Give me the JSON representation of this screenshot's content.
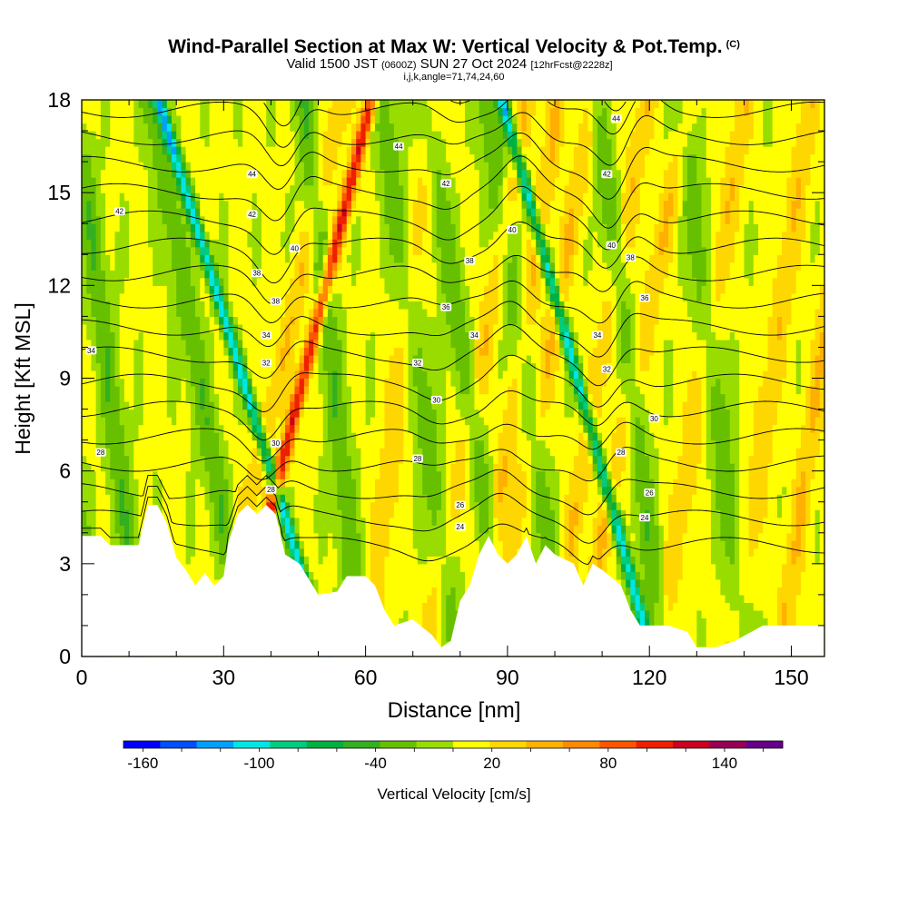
{
  "chart_data": {
    "type": "heatmap",
    "title": "Wind-Parallel Section at Max W: Vertical Velocity & Pot.Temp.",
    "title_mark": "(C)",
    "subtitle_main_a": "Valid 1500 JST ",
    "subtitle_small_a": "(0600Z)",
    "subtitle_main_b": " SUN 27 Oct 2024 ",
    "subtitle_small_b": "[12hrFcst@2228z]",
    "subtitle_line2": "i,j,k,angle=71,74,24,60",
    "xlabel": "Distance [nm]",
    "ylabel": "Height [Kft MSL]",
    "xlim": [
      0,
      157
    ],
    "ylim": [
      0,
      18
    ],
    "x_ticks": [
      "0",
      "30",
      "60",
      "90",
      "120",
      "150"
    ],
    "y_ticks": [
      "0",
      "3",
      "6",
      "9",
      "12",
      "15",
      "18"
    ],
    "colorbar": {
      "label": "Vertical Velocity [cm/s]",
      "range": [
        -170,
        170
      ],
      "step": 20,
      "tick_labels": [
        "-160",
        "-100",
        "-40",
        "20",
        "80",
        "140"
      ],
      "colors": [
        "#0000ff",
        "#0050ff",
        "#00a0ff",
        "#00e6e6",
        "#00cc80",
        "#00b040",
        "#33b020",
        "#66c000",
        "#99dd00",
        "#ffff00",
        "#ffd700",
        "#ffb000",
        "#ff8800",
        "#ff5500",
        "#ee2000",
        "#cc0020",
        "#990055",
        "#660088"
      ]
    },
    "terrain_kft": [
      [
        0,
        3.9
      ],
      [
        4,
        3.9
      ],
      [
        6,
        3.6
      ],
      [
        12,
        3.6
      ],
      [
        14,
        4.9
      ],
      [
        16,
        4.9
      ],
      [
        18,
        4.3
      ],
      [
        20,
        3.2
      ],
      [
        22,
        2.8
      ],
      [
        24,
        2.3
      ],
      [
        26,
        2.7
      ],
      [
        28,
        2.3
      ],
      [
        30,
        2.6
      ],
      [
        31,
        3.7
      ],
      [
        33,
        4.6
      ],
      [
        35,
        4.9
      ],
      [
        37,
        4.6
      ],
      [
        39,
        4.9
      ],
      [
        41,
        4.6
      ],
      [
        43,
        3.3
      ],
      [
        46,
        3.0
      ],
      [
        50,
        2.0
      ],
      [
        54,
        2.1
      ],
      [
        56,
        2.6
      ],
      [
        60,
        2.6
      ],
      [
        62,
        2.3
      ],
      [
        64,
        1.5
      ],
      [
        66,
        1.0
      ],
      [
        70,
        1.2
      ],
      [
        74,
        0.7
      ],
      [
        76,
        0.3
      ],
      [
        78,
        0.5
      ],
      [
        80,
        1.8
      ],
      [
        82,
        2.3
      ],
      [
        84,
        3.3
      ],
      [
        86,
        3.9
      ],
      [
        88,
        3.3
      ],
      [
        90,
        3.0
      ],
      [
        92,
        3.3
      ],
      [
        94,
        3.9
      ],
      [
        96,
        3.0
      ],
      [
        98,
        3.6
      ],
      [
        100,
        3.3
      ],
      [
        104,
        3.0
      ],
      [
        106,
        2.3
      ],
      [
        108,
        3.0
      ],
      [
        110,
        2.8
      ],
      [
        114,
        2.3
      ],
      [
        116,
        1.5
      ],
      [
        118,
        1.0
      ],
      [
        124,
        1.0
      ],
      [
        128,
        0.8
      ],
      [
        130,
        0.3
      ],
      [
        134,
        0.3
      ],
      [
        138,
        0.5
      ],
      [
        144,
        1.0
      ],
      [
        150,
        1.0
      ],
      [
        157,
        1.0
      ]
    ],
    "updraft_cores": [
      [
        -11,
        0.9
      ],
      [
        -11,
        -0.7
      ],
      [
        37,
        1.5
      ],
      [
        42,
        1.6
      ],
      [
        65,
        0.8
      ],
      [
        80,
        1.2
      ],
      [
        89,
        1.0
      ],
      [
        94,
        1.2
      ],
      [
        106,
        1.1
      ],
      [
        113,
        1.3
      ],
      [
        128,
        1.0
      ],
      [
        143,
        0.9
      ],
      [
        153,
        0.9
      ]
    ],
    "downdraft_cores": [
      [
        -8,
        -1.2
      ],
      [
        -3,
        -1.0
      ],
      [
        8,
        -0.7
      ],
      [
        28,
        -1.0
      ],
      [
        40,
        -1.8
      ],
      [
        55,
        -0.6
      ],
      [
        74,
        -0.8
      ],
      [
        84,
        -0.9
      ],
      [
        96,
        -0.8
      ],
      [
        110,
        -1.6
      ],
      [
        118,
        -0.7
      ],
      [
        136,
        -0.7
      ]
    ],
    "isentropes": {
      "base_theta_k": 24,
      "spacing_kft": 0.88,
      "count": 22,
      "waves": [
        [
          40,
          -0.9
        ],
        [
          42,
          0.6
        ],
        [
          90,
          0.4
        ],
        [
          110,
          -0.7
        ],
        [
          113,
          0.5
        ],
        [
          75,
          -0.2
        ]
      ]
    },
    "contour_labels": [
      {
        "text": "44",
        "x": 67,
        "y": 16.5
      },
      {
        "text": "44",
        "x": 36,
        "y": 15.6
      },
      {
        "text": "42",
        "x": 8,
        "y": 14.4
      },
      {
        "text": "42",
        "x": 36,
        "y": 14.3
      },
      {
        "text": "42",
        "x": 77,
        "y": 15.3
      },
      {
        "text": "42",
        "x": 111,
        "y": 15.6
      },
      {
        "text": "44",
        "x": 113,
        "y": 17.4
      },
      {
        "text": "40",
        "x": 45,
        "y": 13.2
      },
      {
        "text": "40",
        "x": 91,
        "y": 13.8
      },
      {
        "text": "40",
        "x": 112,
        "y": 13.3
      },
      {
        "text": "38",
        "x": 37,
        "y": 12.4
      },
      {
        "text": "38",
        "x": 41,
        "y": 11.5
      },
      {
        "text": "38",
        "x": 82,
        "y": 12.8
      },
      {
        "text": "38",
        "x": 116,
        "y": 12.9
      },
      {
        "text": "36",
        "x": 77,
        "y": 11.3
      },
      {
        "text": "36",
        "x": 119,
        "y": 11.6
      },
      {
        "text": "34",
        "x": 2,
        "y": 9.9
      },
      {
        "text": "34",
        "x": 39,
        "y": 10.4
      },
      {
        "text": "34",
        "x": 83,
        "y": 10.4
      },
      {
        "text": "34",
        "x": 109,
        "y": 10.4
      },
      {
        "text": "32",
        "x": 39,
        "y": 9.5
      },
      {
        "text": "32",
        "x": 71,
        "y": 9.5
      },
      {
        "text": "32",
        "x": 111,
        "y": 9.3
      },
      {
        "text": "30",
        "x": 75,
        "y": 8.3
      },
      {
        "text": "30",
        "x": 121,
        "y": 7.7
      },
      {
        "text": "30",
        "x": 41,
        "y": 6.9
      },
      {
        "text": "28",
        "x": 4,
        "y": 6.6
      },
      {
        "text": "28",
        "x": 71,
        "y": 6.4
      },
      {
        "text": "28",
        "x": 114,
        "y": 6.6
      },
      {
        "text": "28",
        "x": 40,
        "y": 5.4
      },
      {
        "text": "26",
        "x": 120,
        "y": 5.3
      },
      {
        "text": "26",
        "x": 80,
        "y": 4.9
      },
      {
        "text": "24",
        "x": 80,
        "y": 4.2
      },
      {
        "text": "24",
        "x": 119,
        "y": 4.5
      }
    ]
  }
}
